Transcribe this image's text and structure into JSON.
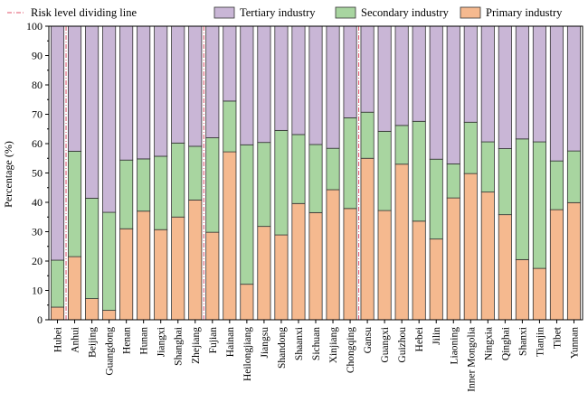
{
  "chart_data": {
    "type": "bar",
    "stacked": true,
    "ylabel": "Percentage (%)",
    "ylim": [
      0,
      100
    ],
    "yticks": [
      0,
      10,
      20,
      30,
      40,
      50,
      60,
      70,
      80,
      90,
      100
    ],
    "grid": false,
    "legend_placement": "top",
    "categories": [
      "Hubei",
      "Anhui",
      "Beijing",
      "Guangdong",
      "Henan",
      "Hunan",
      "Jiangxi",
      "Shanghai",
      "Zhejiang",
      "Fujian",
      "Hainan",
      "Heilongjiang",
      "Jiangsu",
      "Shandong",
      "Shaanxi",
      "Sichuan",
      "Xinjiang",
      "Chongqing",
      "Gansu",
      "Guangxi",
      "Guizhou",
      "Hebei",
      "Jilin",
      "Liaoning",
      "Inner Mongolia",
      "Ningxia",
      "Qinghai",
      "Shanxi",
      "Tianjin",
      "Tibet",
      "Yunnan"
    ],
    "series": [
      {
        "name": "Primary industry",
        "color": "#f5b98f",
        "values": [
          4.3,
          21.5,
          7.2,
          3.2,
          31,
          37,
          30.7,
          35,
          40.8,
          29.8,
          57.2,
          12.1,
          31.8,
          28.9,
          39.6,
          36.5,
          44.3,
          37.9,
          55,
          37.2,
          53,
          33.6,
          27.5,
          41.5,
          49.8,
          43.5,
          35.8,
          20.5,
          17.5,
          37.5,
          39.9
        ]
      },
      {
        "name": "Secondary industry",
        "color": "#a8d5a0",
        "values": [
          16,
          35.9,
          34.2,
          33.4,
          23.4,
          17.8,
          25,
          25.2,
          18.3,
          32.2,
          17.3,
          47.5,
          28.6,
          35.6,
          23.5,
          23.2,
          14.1,
          30.9,
          15.7,
          27,
          13.2,
          34,
          27.2,
          11.6,
          17.5,
          17.1,
          22.5,
          41.1,
          43.1,
          16.6,
          17.6
        ]
      },
      {
        "name": "Tertiary industry",
        "color": "#c9b6d6",
        "values": [
          79.7,
          42.6,
          58.6,
          63.4,
          45.6,
          45.2,
          44.3,
          39.8,
          40.9,
          38,
          25.5,
          40.4,
          39.6,
          35.5,
          36.9,
          40.3,
          41.6,
          31.2,
          29.3,
          35.8,
          33.8,
          32.4,
          45.3,
          46.9,
          32.7,
          39.4,
          41.7,
          38.4,
          39.4,
          45.9,
          42.5
        ]
      }
    ],
    "dividers": {
      "name": "Risk level dividing line",
      "color": "#e0506a",
      "after_categories": [
        "Hubei",
        "Zhejiang",
        "Chongqing"
      ]
    },
    "legend": [
      "Risk level dividing line",
      "Tertiary industry",
      "Secondary industry",
      "Primary industry"
    ]
  }
}
